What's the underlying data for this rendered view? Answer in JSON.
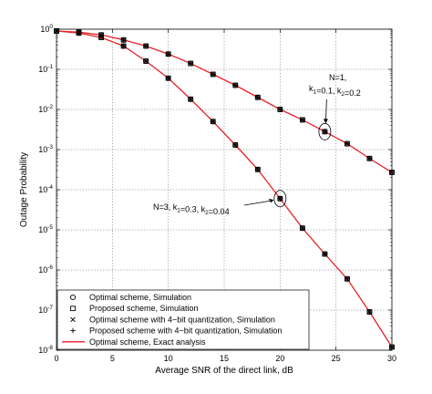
{
  "chart_data": {
    "type": "line",
    "xlabel": "Average SNR of the direct link, dB",
    "ylabel": "Outage Probability",
    "xlim": [
      0,
      30
    ],
    "ylim": [
      1e-08,
      1
    ],
    "yscale": "log",
    "grid": true,
    "xticks": [
      0,
      5,
      10,
      15,
      20,
      25,
      30
    ],
    "xtick_labels": [
      "0",
      "5",
      "10",
      "15",
      "20",
      "25",
      "30"
    ],
    "yticks": [
      1e-08,
      1e-07,
      1e-06,
      1e-05,
      0.0001,
      0.001,
      0.01,
      0.1,
      1
    ],
    "ytick_labels": [
      {
        "base": "10",
        "exp": "-8"
      },
      {
        "base": "10",
        "exp": "-7"
      },
      {
        "base": "10",
        "exp": "-6"
      },
      {
        "base": "10",
        "exp": "-5"
      },
      {
        "base": "10",
        "exp": "-4"
      },
      {
        "base": "10",
        "exp": "-3"
      },
      {
        "base": "10",
        "exp": "-2"
      },
      {
        "base": "10",
        "exp": "-1"
      },
      {
        "base": "10",
        "exp": "0"
      }
    ],
    "legend_position": "bottom-left",
    "legend": [
      {
        "label": "Optimal scheme, Simulation",
        "marker": "circle"
      },
      {
        "label": "Proposed scheme, Simulation",
        "marker": "square"
      },
      {
        "label": "Optimal scheme with 4−bit quantization, Simulation",
        "marker": "x"
      },
      {
        "label": "Proposed scheme with 4−bit quantization, Simulation",
        "marker": "plus"
      },
      {
        "label": "Optimal scheme, Exact analysis",
        "marker": "line"
      }
    ],
    "line_color": "#e8202a",
    "curves": [
      {
        "config": "N=1",
        "x": [
          0,
          2,
          4,
          6,
          8,
          10,
          12,
          14,
          16,
          18,
          20,
          22,
          24,
          26,
          28,
          30
        ],
        "y": [
          0.9,
          0.84,
          0.72,
          0.54,
          0.38,
          0.24,
          0.14,
          0.075,
          0.04,
          0.02,
          0.01,
          0.0055,
          0.0028,
          0.0014,
          0.0006,
          0.00027
        ]
      },
      {
        "config": "N=3",
        "x": [
          0,
          2,
          4,
          6,
          8,
          10,
          12,
          14,
          16,
          18,
          20,
          22,
          24,
          26,
          28,
          30
        ],
        "y": [
          0.9,
          0.8,
          0.62,
          0.38,
          0.16,
          0.06,
          0.018,
          0.005,
          0.0013,
          0.00032,
          6e-05,
          1.1e-05,
          2.5e-06,
          6e-07,
          9e-08,
          1.2e-08
        ]
      }
    ],
    "annotations": [
      {
        "lines": [
          [
            {
              "t": "N=1,"
            }
          ],
          [
            {
              "t": "k"
            },
            {
              "t": "1",
              "sub": true
            },
            {
              "t": "=0.1, k"
            },
            {
              "t": "2",
              "sub": true
            },
            {
              "t": "=0.2"
            }
          ]
        ],
        "target": [
          24,
          0.0028
        ]
      },
      {
        "lines": [
          [
            {
              "t": "N=3, k"
            },
            {
              "t": "1",
              "sub": true
            },
            {
              "t": "=0.3, k"
            },
            {
              "t": "2",
              "sub": true
            },
            {
              "t": "=0.04"
            }
          ]
        ],
        "target": [
          20,
          6e-05
        ]
      }
    ]
  }
}
